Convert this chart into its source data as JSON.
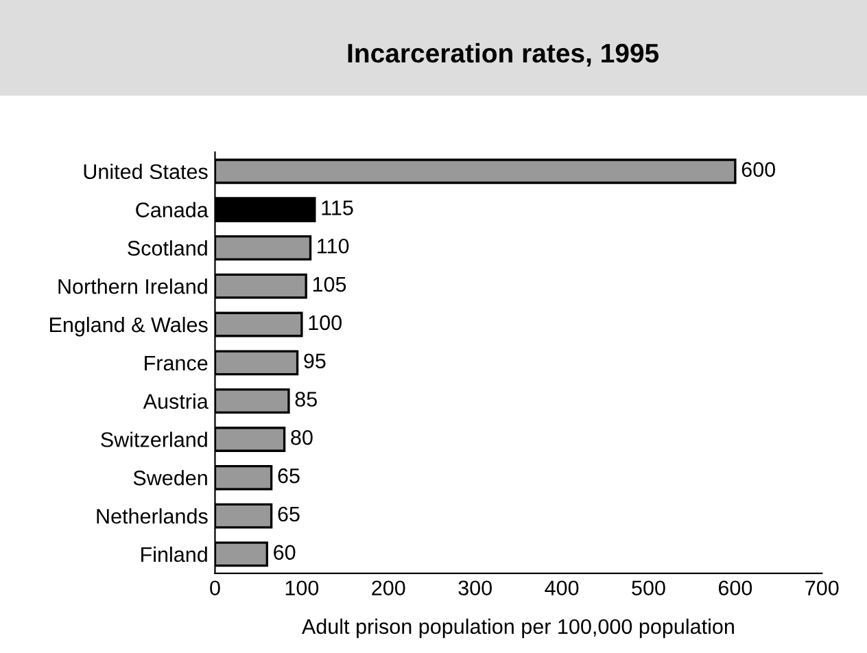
{
  "chart_data": {
    "type": "bar",
    "orientation": "horizontal",
    "title": "Incarceration rates, 1995",
    "xlabel": "Adult prison population per 100,000 population",
    "categories": [
      "United States",
      "Canada",
      "Scotland",
      "Northern Ireland",
      "England & Wales",
      "France",
      "Austria",
      "Switzerland",
      "Sweden",
      "Netherlands",
      "Finland"
    ],
    "values": [
      600,
      115,
      110,
      105,
      100,
      95,
      85,
      80,
      65,
      65,
      60
    ],
    "colors": [
      "#999999",
      "#000000",
      "#999999",
      "#999999",
      "#999999",
      "#999999",
      "#999999",
      "#999999",
      "#999999",
      "#999999",
      "#999999"
    ],
    "xlim": [
      0,
      700
    ],
    "xticks": [
      0,
      100,
      200,
      300,
      400,
      500,
      600,
      700
    ],
    "data_labels": true,
    "grid": false,
    "legend": false
  }
}
